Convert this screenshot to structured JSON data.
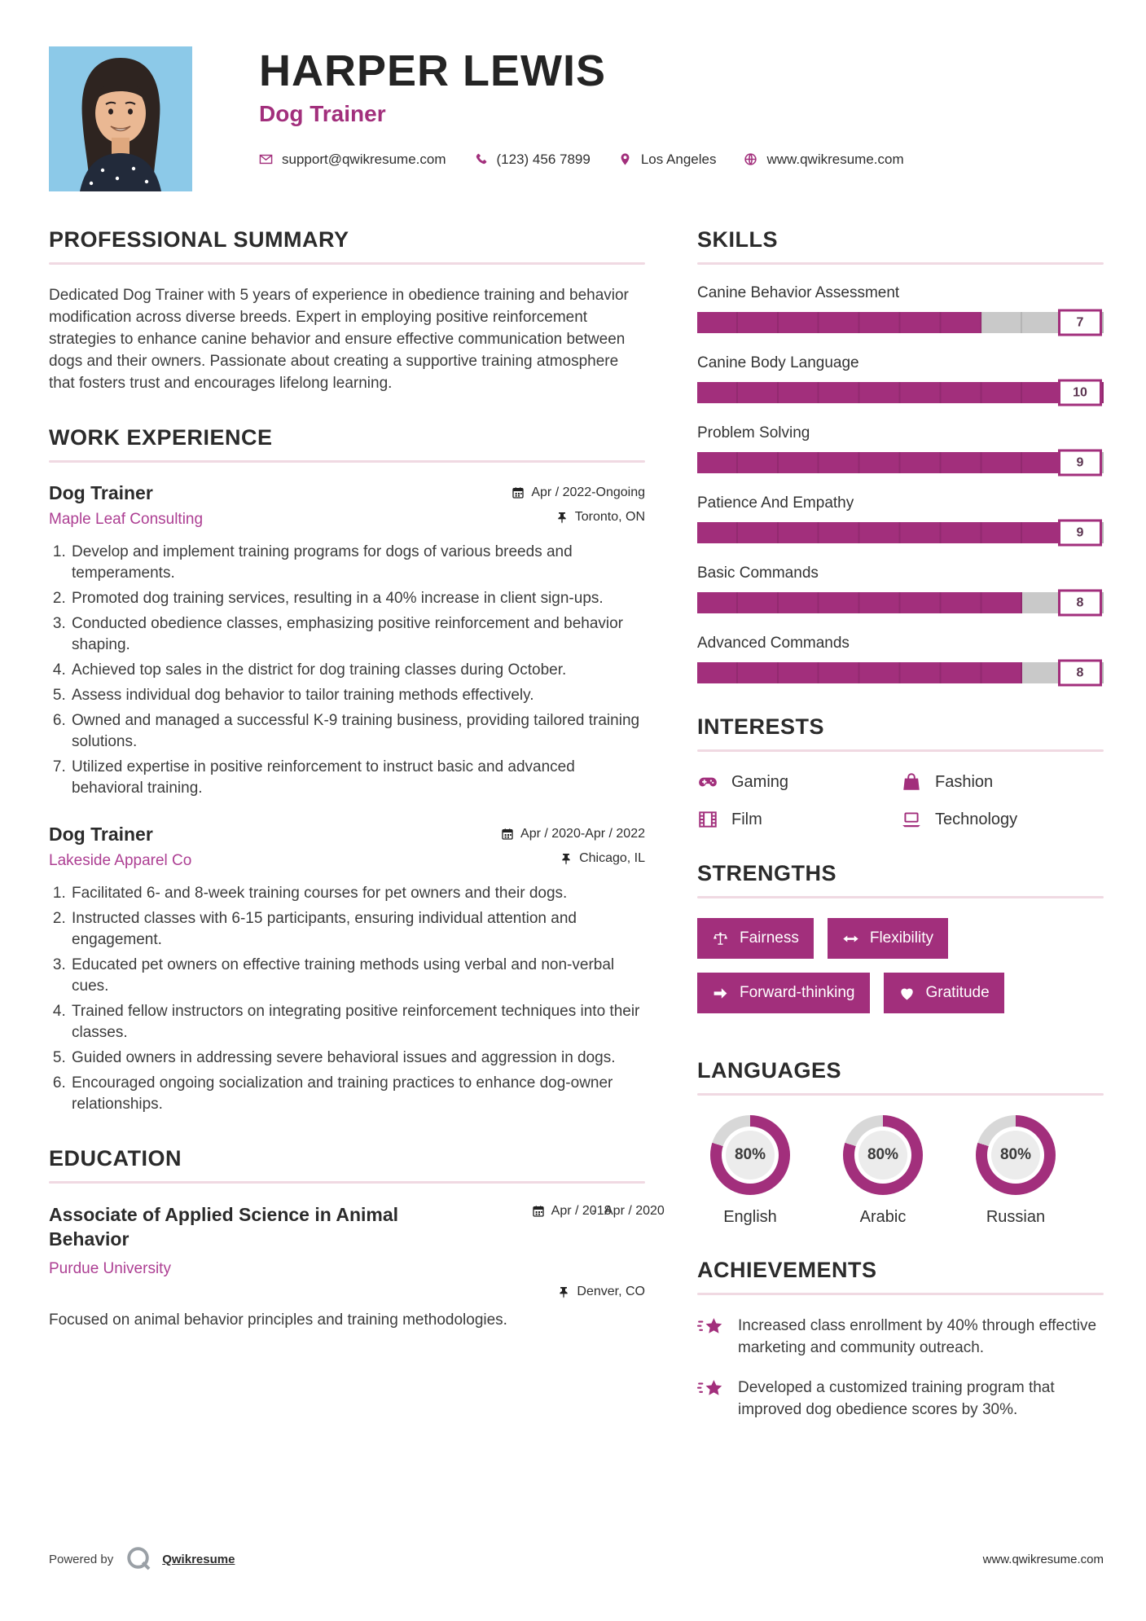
{
  "colors": {
    "accent": "#a22f7c",
    "accent_light": "#ad3f93",
    "bar_track": "#c9c9c9",
    "section_underline": "#f0d9e2",
    "photo_background": "#8cc9e8",
    "donut_remainder": "#d8d8d8"
  },
  "header": {
    "name": "HARPER LEWIS",
    "title": "Dog Trainer",
    "email": "support@qwikresume.com",
    "phone": "(123) 456 7899",
    "location": "Los Angeles",
    "website": "www.qwikresume.com"
  },
  "summary": {
    "heading": "PROFESSIONAL SUMMARY",
    "text": "Dedicated Dog Trainer with 5 years of experience in obedience training and behavior modification across diverse breeds. Expert in employing positive reinforcement strategies to enhance canine behavior and ensure effective communication between dogs and their owners. Passionate about creating a supportive training atmosphere that fosters trust and encourages lifelong learning."
  },
  "work": {
    "heading": "WORK EXPERIENCE",
    "jobs": [
      {
        "title": "Dog Trainer",
        "company": "Maple Leaf Consulting",
        "date": "Apr / 2022-Ongoing",
        "location": "Toronto, ON",
        "bullets": [
          "Develop and implement training programs for dogs of various breeds and temperaments.",
          "Promoted dog training services, resulting in a 40% increase in client sign-ups.",
          "Conducted obedience classes, emphasizing positive reinforcement and behavior shaping.",
          "Achieved top sales in the district for dog training classes during October.",
          "Assess individual dog behavior to tailor training methods effectively.",
          "Owned and managed a successful K-9 training business, providing tailored training solutions.",
          "Utilized expertise in positive reinforcement to instruct basic and advanced behavioral training."
        ]
      },
      {
        "title": "Dog Trainer",
        "company": "Lakeside Apparel Co",
        "date": "Apr / 2020-Apr / 2022",
        "location": "Chicago, IL",
        "bullets": [
          "Facilitated 6- and 8-week training courses for pet owners and their dogs.",
          "Instructed classes with 6-15 participants, ensuring individual attention and engagement.",
          "Educated pet owners on effective training methods using verbal and non-verbal cues.",
          "Trained fellow instructors on integrating positive reinforcement techniques into their classes.",
          "Guided owners in addressing severe behavioral issues and aggression in dogs.",
          "Encouraged ongoing socialization and training practices to enhance dog-owner relationships."
        ]
      }
    ]
  },
  "education": {
    "heading": "EDUCATION",
    "degree": "Associate of Applied Science in Animal Behavior",
    "school": "Purdue University",
    "date_start": "Apr / 2018",
    "date_sep": "-",
    "date_end": "Apr / 2020",
    "location": "Denver, CO",
    "note": "Focused on animal behavior principles and training methodologies."
  },
  "skills": {
    "heading": "SKILLS",
    "max": 10,
    "items": [
      {
        "label": "Canine Behavior Assessment",
        "value": 7
      },
      {
        "label": "Canine Body Language",
        "value": 10
      },
      {
        "label": "Problem Solving",
        "value": 9
      },
      {
        "label": "Patience And Empathy",
        "value": 9
      },
      {
        "label": "Basic Commands",
        "value": 8
      },
      {
        "label": "Advanced Commands",
        "value": 8
      }
    ]
  },
  "interests": {
    "heading": "INTERESTS",
    "items": [
      {
        "label": "Gaming",
        "icon": "gamepad-icon"
      },
      {
        "label": "Fashion",
        "icon": "shopping-bag-icon"
      },
      {
        "label": "Film",
        "icon": "film-icon"
      },
      {
        "label": "Technology",
        "icon": "laptop-icon"
      }
    ]
  },
  "strengths": {
    "heading": "STRENGTHS",
    "items": [
      {
        "label": "Fairness",
        "icon": "scales-icon"
      },
      {
        "label": "Flexibility",
        "icon": "left-right-arrow-icon"
      },
      {
        "label": "Forward-thinking",
        "icon": "arrow-right-icon"
      },
      {
        "label": "Gratitude",
        "icon": "heart-icon"
      }
    ]
  },
  "languages": {
    "heading": "LANGUAGES",
    "items": [
      {
        "label": "English",
        "percent": 80,
        "percent_label": "80%"
      },
      {
        "label": "Arabic",
        "percent": 80,
        "percent_label": "80%"
      },
      {
        "label": "Russian",
        "percent": 80,
        "percent_label": "80%"
      }
    ]
  },
  "achievements": {
    "heading": "ACHIEVEMENTS",
    "items": [
      "Increased class enrollment by 40% through effective marketing and community outreach.",
      "Developed a customized training program that improved dog obedience scores by 30%."
    ]
  },
  "footer": {
    "powered_by": "Powered by",
    "brand": "Qwikresume",
    "website": "www.qwikresume.com"
  }
}
